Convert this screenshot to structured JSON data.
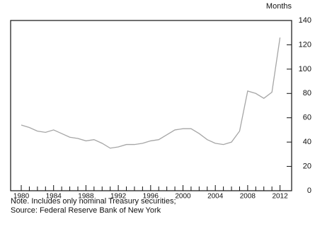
{
  "chart_data": {
    "type": "line",
    "y_label": "Months",
    "x": [
      1980,
      1981,
      1982,
      1983,
      1984,
      1985,
      1986,
      1987,
      1988,
      1989,
      1990,
      1991,
      1992,
      1993,
      1994,
      1995,
      1996,
      1997,
      1998,
      1999,
      2000,
      2001,
      2002,
      2003,
      2004,
      2005,
      2006,
      2007,
      2008,
      2009,
      2010,
      2011,
      2012
    ],
    "series": [
      {
        "color": "#a6a6a6",
        "values": [
          54,
          52,
          49,
          48,
          50,
          47,
          44,
          43,
          41,
          42,
          39,
          35,
          36,
          38,
          38,
          39,
          41,
          42,
          46,
          50,
          51,
          51,
          47,
          42,
          39,
          38,
          40,
          49,
          82,
          80,
          76,
          81,
          126
        ]
      }
    ],
    "xlim": [
      1979,
      2013
    ],
    "xticks": [
      1980,
      1984,
      1988,
      1992,
      1996,
      2000,
      2004,
      2008,
      2012
    ],
    "xminorticks": [
      1981,
      1982,
      1983,
      1985,
      1986,
      1987,
      1989,
      1990,
      1991,
      1993,
      1994,
      1995,
      1997,
      1998,
      1999,
      2001,
      2002,
      2003,
      2005,
      2006,
      2007,
      2009,
      2010,
      2011
    ],
    "ylim": [
      0,
      140
    ],
    "yticks": [
      0,
      20,
      40,
      60,
      80,
      100,
      120,
      140
    ],
    "notes": [
      "Note. Includes only nominal Treasury securities;",
      "Source: Federal Reserve Bank of New York"
    ]
  }
}
